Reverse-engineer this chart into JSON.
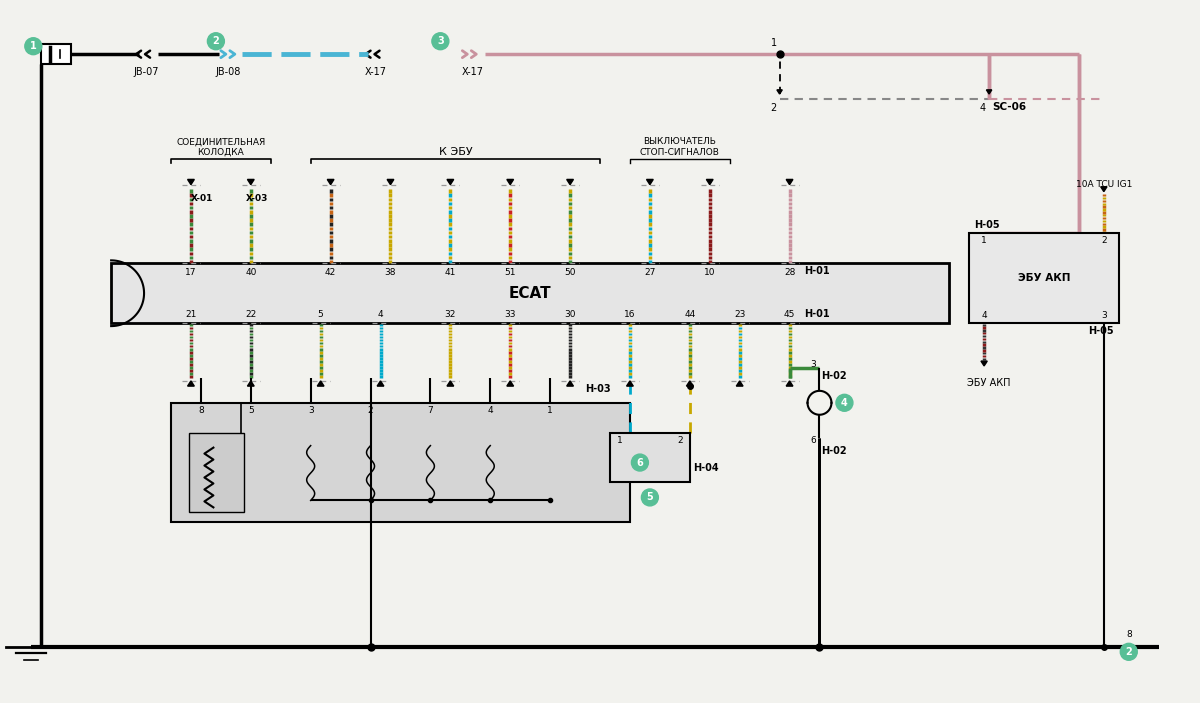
{
  "bg_color": "#f2f2ee",
  "ecat_label": "ECAT",
  "soied_label": "СОЕДИНИТЕЛЬНАЯ\nКОЛОДКА",
  "k_ebu_label": "К ЭБУ",
  "vikl_label": "ВЫКЛЮЧАТЕЛЬ\nСТОП-СИГНАЛОВ",
  "ebu_akp_label": "ЭБУ АКП",
  "10a_label": "10A TCU IG1",
  "jb07": "JB-07",
  "jb08": "JB-08",
  "x17a": "X-17",
  "x17b": "X-17",
  "sc06": "SC-06",
  "x01": "X-01",
  "x03": "X-03",
  "h01": "H-01",
  "h02": "H-02",
  "h03": "H-03",
  "h04": "H-04",
  "h05": "H-05",
  "pink": "#c9929e",
  "blue_dash": "#4ab5d4",
  "dark": "#222222",
  "green": "#3a8a3a",
  "yellow": "#c8a800",
  "cyan": "#00aacc",
  "red": "#cc2222",
  "dark_red": "#8b1a1a",
  "orange_br": "#c86414",
  "gray_dash": "#888888",
  "circ_color": "#58bf96"
}
